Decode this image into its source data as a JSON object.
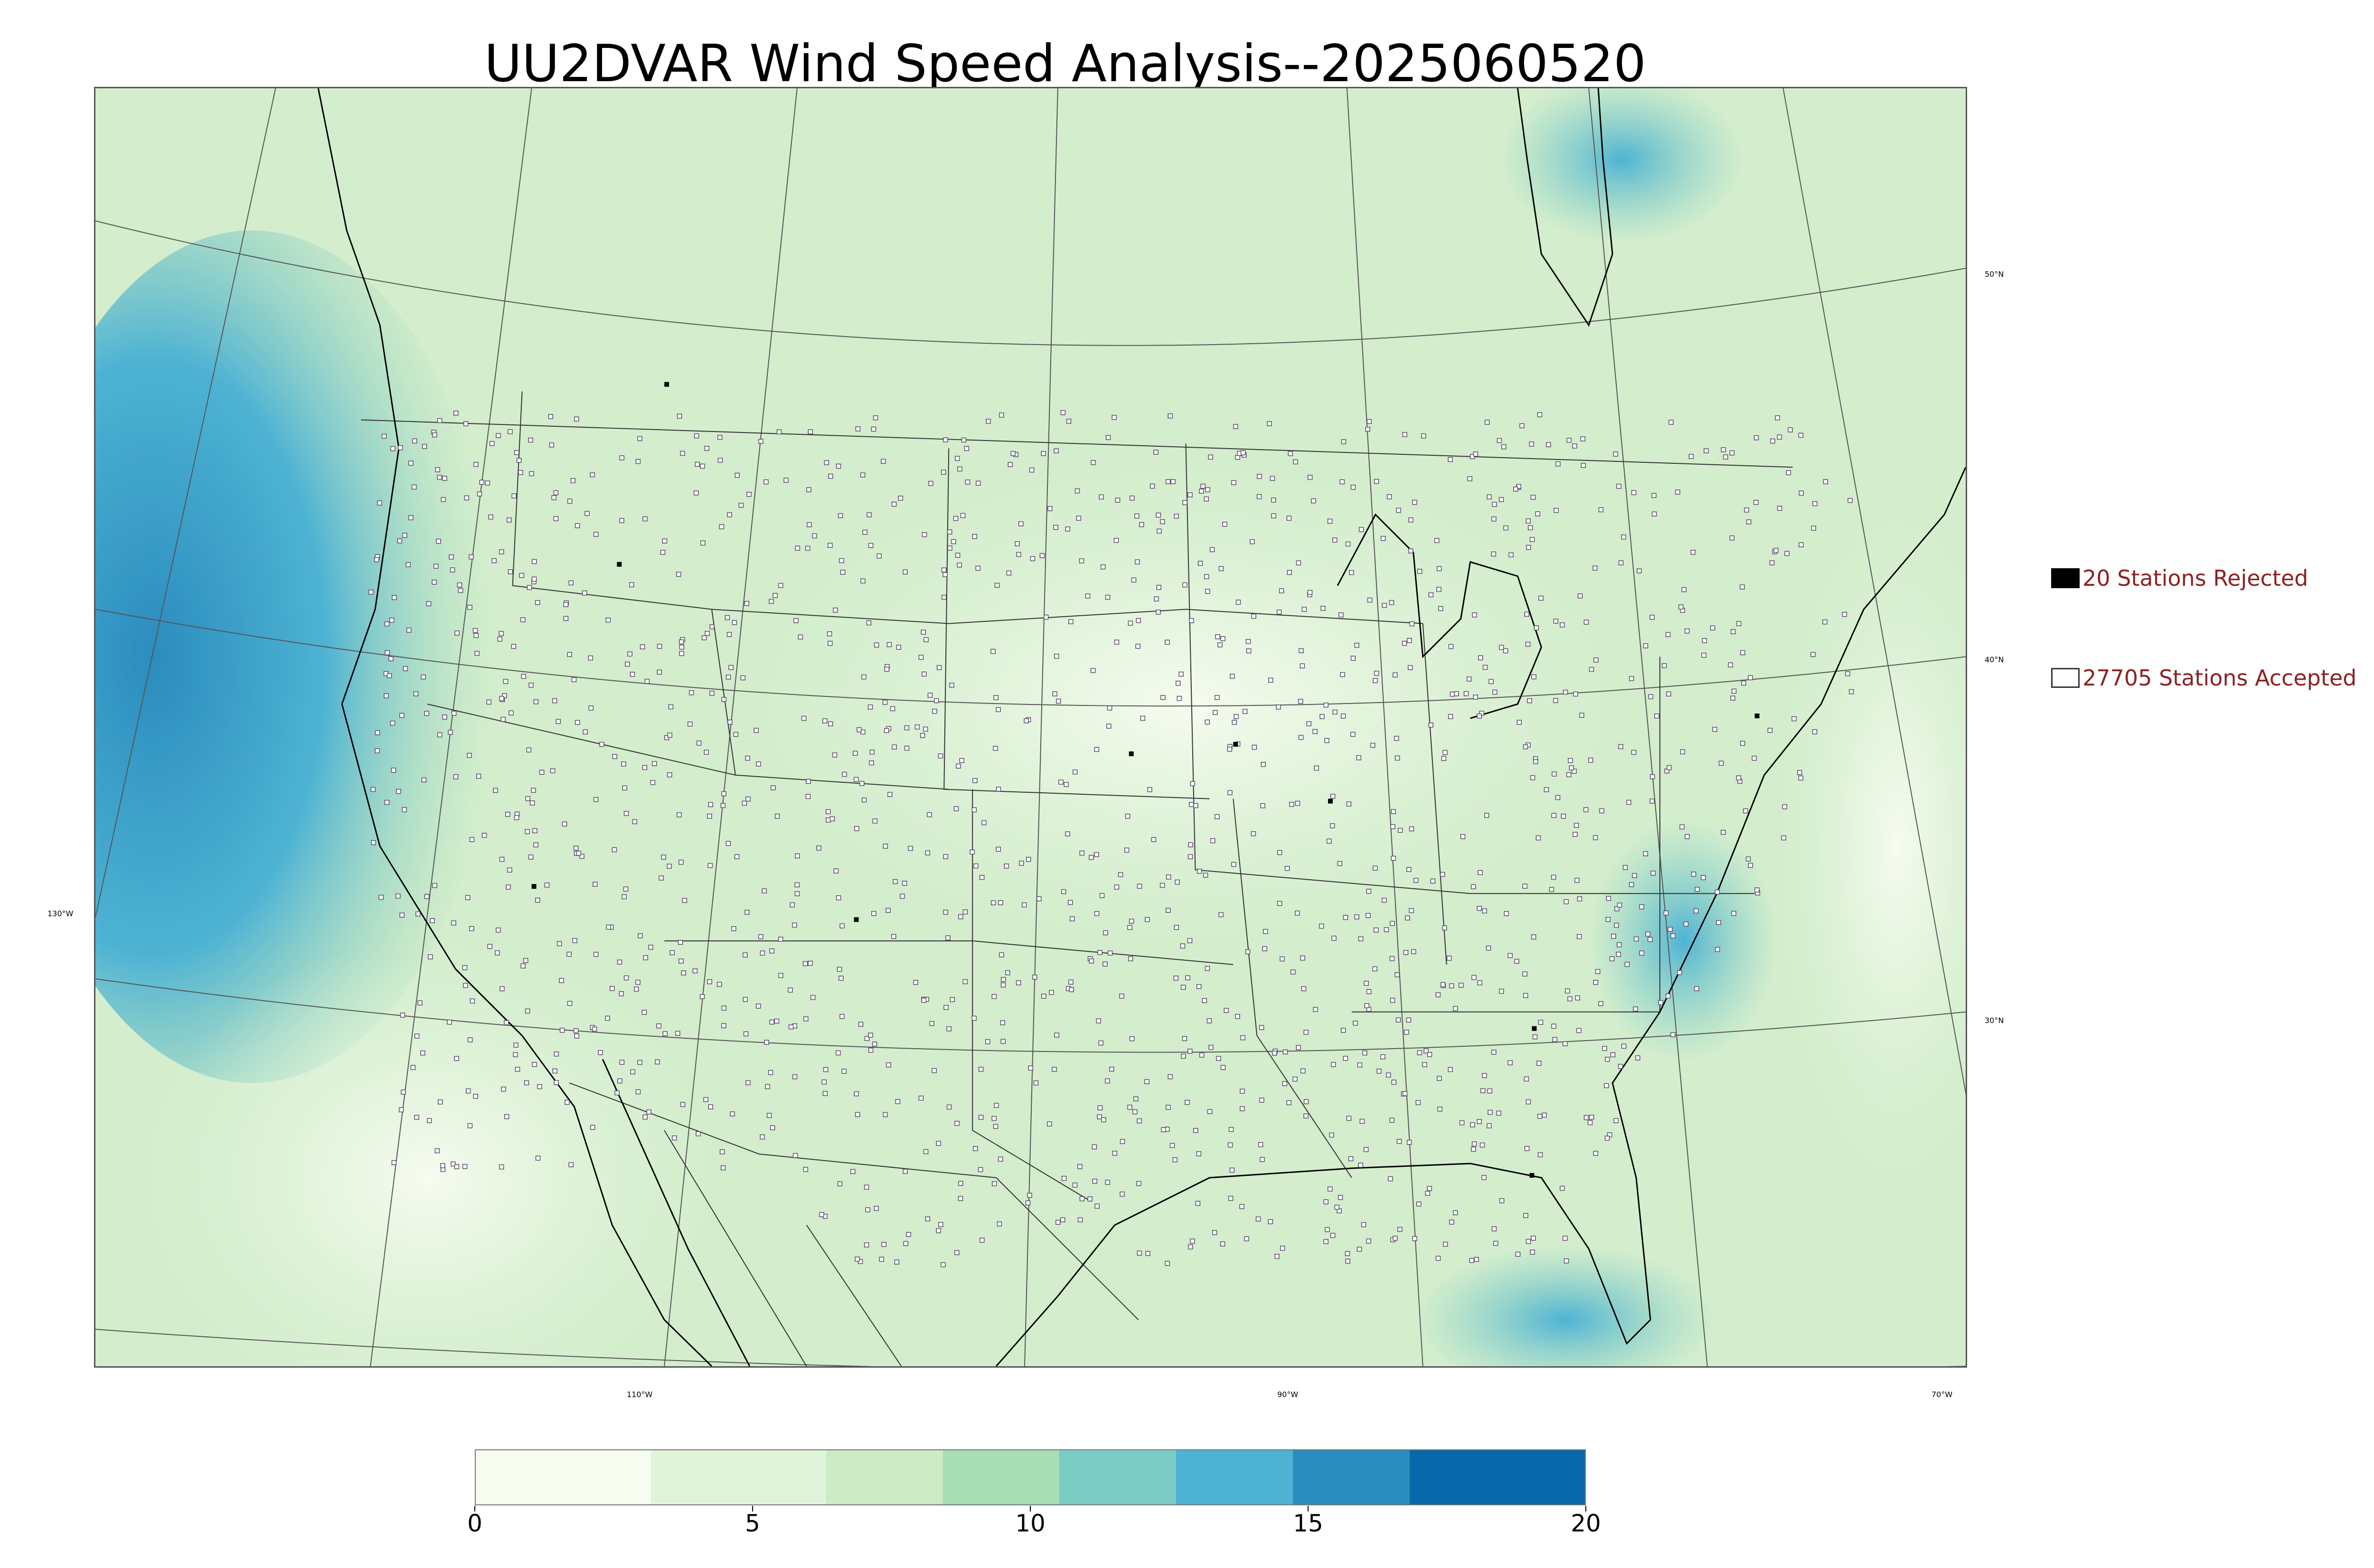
{
  "title": "UU2DVAR Wind Speed Analysis--2025060520",
  "map": {
    "latitude_labels": [
      "50°N",
      "40°N",
      "30°N"
    ],
    "longitude_labels": [
      "130°W",
      "110°W",
      "90°W",
      "70°W"
    ]
  },
  "legend": {
    "rejected": {
      "label": "20 Stations Rejected",
      "color": "#000000",
      "marker": "filled-square-icon"
    },
    "accepted": {
      "label": "27705 Stations Accepted",
      "color": "#ffffff",
      "marker": "hollow-square-icon"
    },
    "text_color": "#8b2323"
  },
  "colorbar": {
    "min": 0,
    "max": 20,
    "tick_labels": [
      "0",
      "5",
      "10",
      "15",
      "20"
    ],
    "colors": [
      "#f7fcf0",
      "#e0f3db",
      "#ccebc5",
      "#a8ddb5",
      "#7bccc4",
      "#4eb3d3",
      "#2b8cbe",
      "#0868ac"
    ]
  }
}
